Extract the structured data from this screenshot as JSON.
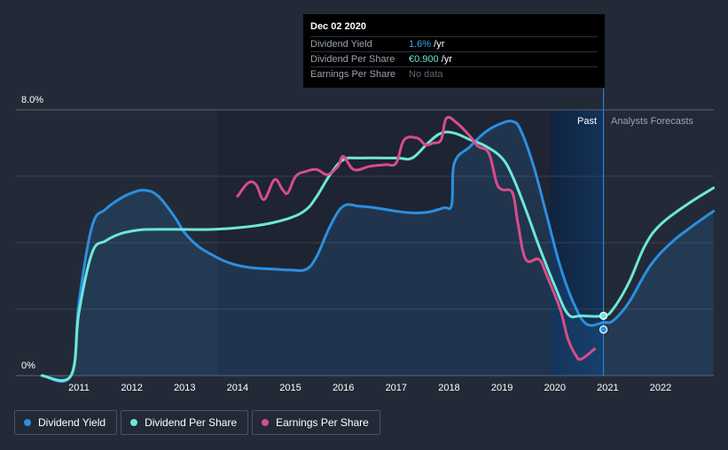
{
  "chart_data": {
    "type": "line",
    "x_range": [
      2010.3,
      2023.0
    ],
    "ylim": [
      0,
      8.0
    ],
    "y_tick_labels": [
      "8.0%",
      "0%"
    ],
    "x_ticks": [
      2011,
      2012,
      2013,
      2014,
      2015,
      2016,
      2017,
      2018,
      2019,
      2020,
      2021,
      2022
    ],
    "forecast_start": 2020.92,
    "past_label": "Past",
    "forecast_label": "Analysts Forecasts",
    "series": [
      {
        "name": "Dividend Yield",
        "color": "#2b8fe0",
        "points": [
          [
            2010.3,
            0
          ],
          [
            2010.85,
            0
          ],
          [
            2011.0,
            2.2
          ],
          [
            2011.25,
            4.5
          ],
          [
            2011.5,
            5.0
          ],
          [
            2011.75,
            5.3
          ],
          [
            2012.0,
            5.5
          ],
          [
            2012.25,
            5.58
          ],
          [
            2012.5,
            5.4
          ],
          [
            2012.8,
            4.8
          ],
          [
            2013.0,
            4.3
          ],
          [
            2013.25,
            3.9
          ],
          [
            2013.5,
            3.65
          ],
          [
            2013.75,
            3.45
          ],
          [
            2014.0,
            3.32
          ],
          [
            2014.25,
            3.25
          ],
          [
            2014.5,
            3.22
          ],
          [
            2014.75,
            3.2
          ],
          [
            2015.0,
            3.18
          ],
          [
            2015.3,
            3.2
          ],
          [
            2015.5,
            3.6
          ],
          [
            2015.75,
            4.5
          ],
          [
            2016.0,
            5.1
          ],
          [
            2016.3,
            5.1
          ],
          [
            2016.6,
            5.05
          ],
          [
            2017.0,
            4.95
          ],
          [
            2017.3,
            4.9
          ],
          [
            2017.6,
            4.92
          ],
          [
            2017.9,
            5.05
          ],
          [
            2018.05,
            5.15
          ],
          [
            2018.1,
            6.4
          ],
          [
            2018.4,
            6.9
          ],
          [
            2018.7,
            7.35
          ],
          [
            2019.0,
            7.6
          ],
          [
            2019.2,
            7.65
          ],
          [
            2019.35,
            7.4
          ],
          [
            2019.6,
            6.3
          ],
          [
            2019.85,
            4.8
          ],
          [
            2020.1,
            3.3
          ],
          [
            2020.35,
            2.2
          ],
          [
            2020.6,
            1.55
          ],
          [
            2020.92,
            1.6
          ],
          [
            2021.1,
            1.65
          ],
          [
            2021.4,
            2.2
          ],
          [
            2021.8,
            3.3
          ],
          [
            2022.2,
            4.0
          ],
          [
            2022.6,
            4.5
          ],
          [
            2023.0,
            4.95
          ]
        ]
      },
      {
        "name": "Dividend Per Share",
        "color": "#6ee7d8",
        "points": [
          [
            2010.3,
            0
          ],
          [
            2010.85,
            0
          ],
          [
            2011.0,
            1.9
          ],
          [
            2011.25,
            3.7
          ],
          [
            2011.5,
            4.05
          ],
          [
            2011.75,
            4.25
          ],
          [
            2012.0,
            4.35
          ],
          [
            2012.3,
            4.4
          ],
          [
            2013.0,
            4.4
          ],
          [
            2013.5,
            4.4
          ],
          [
            2014.0,
            4.45
          ],
          [
            2014.5,
            4.55
          ],
          [
            2015.0,
            4.75
          ],
          [
            2015.3,
            5.0
          ],
          [
            2015.5,
            5.4
          ],
          [
            2015.75,
            6.05
          ],
          [
            2016.0,
            6.5
          ],
          [
            2016.3,
            6.55
          ],
          [
            2017.0,
            6.55
          ],
          [
            2017.3,
            6.55
          ],
          [
            2017.6,
            7.0
          ],
          [
            2017.85,
            7.3
          ],
          [
            2018.1,
            7.3
          ],
          [
            2018.4,
            7.1
          ],
          [
            2018.7,
            6.9
          ],
          [
            2019.0,
            6.55
          ],
          [
            2019.2,
            6.0
          ],
          [
            2019.45,
            5.0
          ],
          [
            2019.7,
            3.9
          ],
          [
            2020.0,
            2.7
          ],
          [
            2020.25,
            1.85
          ],
          [
            2020.5,
            1.8
          ],
          [
            2020.92,
            1.8
          ],
          [
            2021.1,
            2.0
          ],
          [
            2021.4,
            2.8
          ],
          [
            2021.7,
            3.9
          ],
          [
            2022.0,
            4.55
          ],
          [
            2022.5,
            5.15
          ],
          [
            2023.0,
            5.65
          ]
        ]
      },
      {
        "name": "Earnings Per Share",
        "color": "#d94c8a",
        "points": [
          [
            2014.0,
            5.4
          ],
          [
            2014.2,
            5.8
          ],
          [
            2014.35,
            5.75
          ],
          [
            2014.5,
            5.3
          ],
          [
            2014.7,
            5.9
          ],
          [
            2014.85,
            5.6
          ],
          [
            2014.95,
            5.5
          ],
          [
            2015.1,
            6.0
          ],
          [
            2015.3,
            6.15
          ],
          [
            2015.5,
            6.2
          ],
          [
            2015.7,
            6.05
          ],
          [
            2015.9,
            6.3
          ],
          [
            2016.0,
            6.6
          ],
          [
            2016.2,
            6.2
          ],
          [
            2016.5,
            6.3
          ],
          [
            2016.8,
            6.35
          ],
          [
            2017.0,
            6.4
          ],
          [
            2017.15,
            7.1
          ],
          [
            2017.4,
            7.15
          ],
          [
            2017.55,
            6.95
          ],
          [
            2017.7,
            7.0
          ],
          [
            2017.85,
            7.1
          ],
          [
            2017.95,
            7.75
          ],
          [
            2018.15,
            7.6
          ],
          [
            2018.4,
            7.2
          ],
          [
            2018.55,
            6.9
          ],
          [
            2018.75,
            6.7
          ],
          [
            2018.9,
            5.8
          ],
          [
            2019.0,
            5.6
          ],
          [
            2019.2,
            5.5
          ],
          [
            2019.3,
            4.6
          ],
          [
            2019.45,
            3.5
          ],
          [
            2019.7,
            3.5
          ],
          [
            2019.85,
            3.0
          ],
          [
            2020.1,
            2.0
          ],
          [
            2020.25,
            1.1
          ],
          [
            2020.4,
            0.6
          ],
          [
            2020.5,
            0.5
          ],
          [
            2020.75,
            0.8
          ]
        ]
      }
    ]
  },
  "tooltip": {
    "date": "Dec 02 2020",
    "rows": [
      {
        "label": "Dividend Yield",
        "value": "1.6%",
        "unit": " /yr"
      },
      {
        "label": "Dividend Per Share",
        "value": "€0.900",
        "unit": " /yr"
      },
      {
        "label": "Earnings Per Share",
        "value": "No data"
      }
    ]
  },
  "legend": [
    {
      "label": "Dividend Yield",
      "color": "#2b8fe0"
    },
    {
      "label": "Dividend Per Share",
      "color": "#6ee7d8"
    },
    {
      "label": "Earnings Per Share",
      "color": "#d94c8a"
    }
  ]
}
